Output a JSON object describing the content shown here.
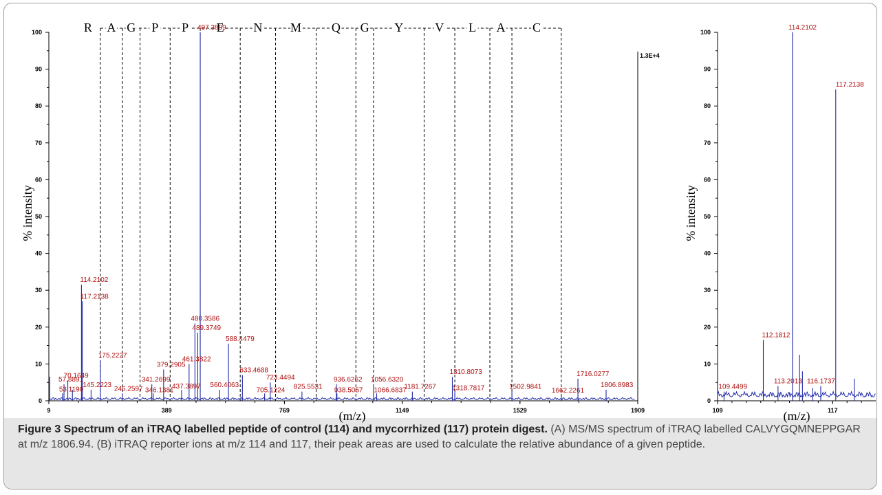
{
  "caption": {
    "title": "Figure 3 Spectrum of an iTRAQ labelled peptide of control (114) and mycorrhized (117) protein digest.",
    "text": " (A) MS/MS spectrum of iTRAQ labelled CALVYGQMNEPPGAR at m/z 1806.94. (B) iTRAQ reporter ions at m/z 114 and 117, their peak areas are used to calculate the relative abundance of a given peptide."
  },
  "chart_data": [
    {
      "type": "bar",
      "panel": "A",
      "xlabel": "(m/z)",
      "ylabel": "% intensity",
      "xlim": [
        9,
        1909
      ],
      "ylim": [
        0,
        100
      ],
      "x_ticks": [
        "9",
        "389",
        "769",
        "1149",
        "1529",
        "1909"
      ],
      "y_ticks": [
        "0",
        "10",
        "20",
        "30",
        "40",
        "50",
        "60",
        "70",
        "80",
        "90",
        "100"
      ],
      "scale_label": "1.3E+4",
      "sequence": {
        "letters": [
          "R",
          "A",
          "G",
          "P",
          "P",
          "E",
          "N",
          "M",
          "Q",
          "G",
          "Y",
          "V",
          "L",
          "A",
          "C"
        ],
        "boundaries": [
          175.2227,
          246.2597,
          303.28,
          400.33,
          497.3899,
          626.43,
          740.48,
          871.52,
          999.58,
          1056.632,
          1219.69,
          1318.7817,
          1431.87,
          1502.9841,
          1662.2261
        ]
      },
      "peaks": [
        {
          "x": 12,
          "y": 6.5,
          "label": ""
        },
        {
          "x": 53.1,
          "y": 2,
          "label": "53.1190"
        },
        {
          "x": 57.8891,
          "y": 4.5,
          "label": "57.8891"
        },
        {
          "x": 70.1649,
          "y": 5.5,
          "label": "70.1649"
        },
        {
          "x": 85,
          "y": 3,
          "label": ""
        },
        {
          "x": 114.2102,
          "y": 31.5,
          "label": "114.2102"
        },
        {
          "x": 117.2138,
          "y": 27,
          "label": "117.2138"
        },
        {
          "x": 145.2223,
          "y": 3,
          "label": "145.2223"
        },
        {
          "x": 175.2227,
          "y": 11,
          "label": "175.2227"
        },
        {
          "x": 246.2597,
          "y": 2,
          "label": "246.2597"
        },
        {
          "x": 341.2699,
          "y": 4.5,
          "label": "341.2699"
        },
        {
          "x": 346.1381,
          "y": 2,
          "label": "346.1381"
        },
        {
          "x": 379.2905,
          "y": 8.5,
          "label": "379.2905"
        },
        {
          "x": 437.3897,
          "y": 3,
          "label": "437.3897"
        },
        {
          "x": 461.3822,
          "y": 10,
          "label": "461.3822"
        },
        {
          "x": 480.3586,
          "y": 21,
          "label": "480.3586"
        },
        {
          "x": 489.3749,
          "y": 18.5,
          "label": "489.3749"
        },
        {
          "x": 497.3899,
          "y": 100,
          "label": "497.3899"
        },
        {
          "x": 560.4063,
          "y": 3,
          "label": "560.4063"
        },
        {
          "x": 588.4479,
          "y": 15.5,
          "label": "588.4479"
        },
        {
          "x": 633.4688,
          "y": 7,
          "label": "633.4688"
        },
        {
          "x": 705.1224,
          "y": 2,
          "label": "705.1224"
        },
        {
          "x": 723.4494,
          "y": 5,
          "label": "723.4494"
        },
        {
          "x": 825.5531,
          "y": 2.5,
          "label": "825.5531"
        },
        {
          "x": 936.6262,
          "y": 4.5,
          "label": "936.6262"
        },
        {
          "x": 938.5057,
          "y": 2,
          "label": "938.5057"
        },
        {
          "x": 1056.632,
          "y": 4.5,
          "label": "1056.6320"
        },
        {
          "x": 1066.6837,
          "y": 2,
          "label": "1066.6837"
        },
        {
          "x": 1181.7267,
          "y": 2.5,
          "label": "1181.7267"
        },
        {
          "x": 1310.8073,
          "y": 6.5,
          "label": "1310.8073"
        },
        {
          "x": 1318.7817,
          "y": 2.5,
          "label": "1318.7817"
        },
        {
          "x": 1502.9841,
          "y": 2.5,
          "label": "1502.9841"
        },
        {
          "x": 1662.2261,
          "y": 1.5,
          "label": "1662.2261"
        },
        {
          "x": 1716.0277,
          "y": 6,
          "label": "1716.0277"
        },
        {
          "x": 1806.8983,
          "y": 3,
          "label": "1806.8983"
        }
      ]
    },
    {
      "type": "bar",
      "panel": "B",
      "xlabel": "(m/z)",
      "ylabel": "% intensity",
      "xlim": [
        109,
        120
      ],
      "ylim": [
        0,
        100
      ],
      "x_ticks": [
        "109",
        "117"
      ],
      "y_ticks": [
        "0",
        "10",
        "20",
        "30",
        "40",
        "50",
        "60",
        "70",
        "80",
        "90",
        "100"
      ],
      "peaks": [
        {
          "x": 109.4499,
          "y": 2.5,
          "label": "109.4499"
        },
        {
          "x": 112.1812,
          "y": 16.5,
          "label": "112.1812"
        },
        {
          "x": 113.2013,
          "y": 4,
          "label": "113.2013"
        },
        {
          "x": 114.2102,
          "y": 100,
          "label": "114.2102"
        },
        {
          "x": 114.7,
          "y": 12.5,
          "label": ""
        },
        {
          "x": 114.9,
          "y": 8,
          "label": ""
        },
        {
          "x": 115.6,
          "y": 3.5,
          "label": ""
        },
        {
          "x": 116.1737,
          "y": 4,
          "label": "116.1737"
        },
        {
          "x": 117.2138,
          "y": 84.5,
          "label": "117.2138"
        },
        {
          "x": 118.5,
          "y": 6,
          "label": ""
        }
      ]
    }
  ]
}
